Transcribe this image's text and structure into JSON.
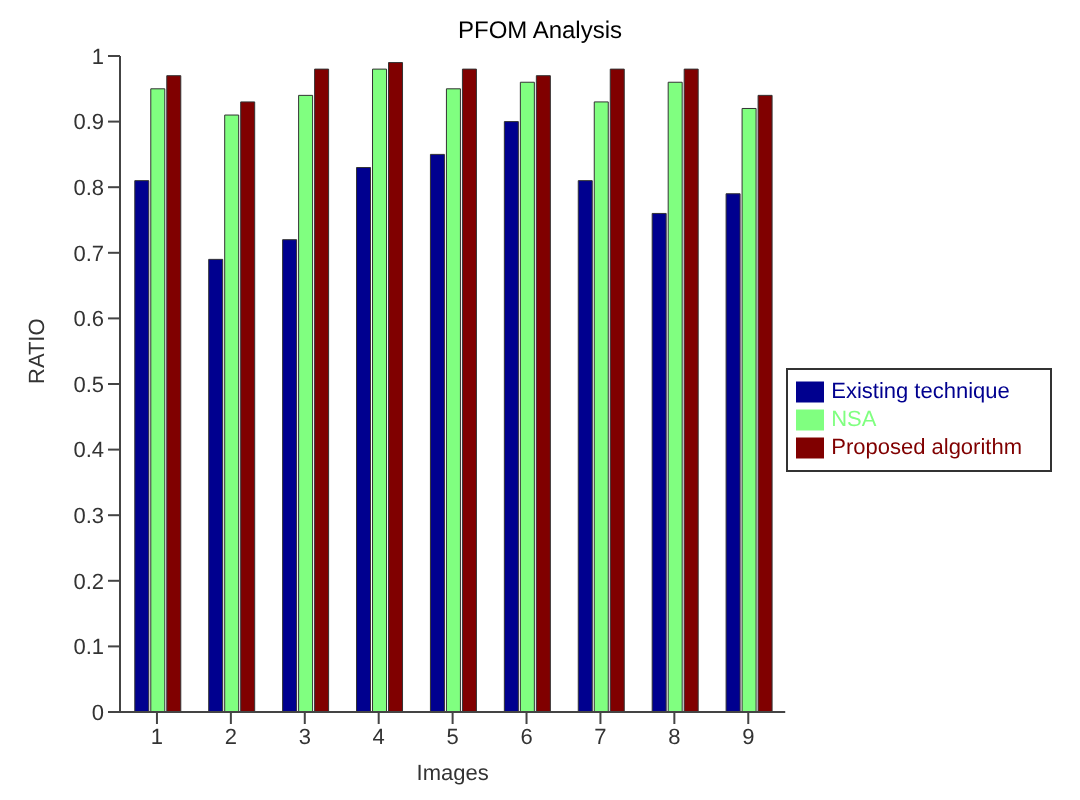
{
  "chart_data": {
    "type": "bar",
    "title": "PFOM Analysis",
    "xlabel": "Images",
    "ylabel": "RATIO",
    "categories": [
      "1",
      "2",
      "3",
      "4",
      "5",
      "6",
      "7",
      "8",
      "9"
    ],
    "series": [
      {
        "name": "Existing technique",
        "color": "#00008f",
        "values": [
          0.81,
          0.69,
          0.72,
          0.83,
          0.85,
          0.9,
          0.81,
          0.76,
          0.79
        ]
      },
      {
        "name": "NSA",
        "color": "#80ff80",
        "values": [
          0.95,
          0.91,
          0.94,
          0.98,
          0.95,
          0.96,
          0.93,
          0.96,
          0.92
        ]
      },
      {
        "name": "Proposed algorithm",
        "color": "#800000",
        "values": [
          0.97,
          0.93,
          0.98,
          0.99,
          0.98,
          0.97,
          0.98,
          0.98,
          0.94
        ]
      }
    ],
    "ylim": [
      0,
      1
    ],
    "yticks": [
      0,
      0.1,
      0.2,
      0.3,
      0.4,
      0.5,
      0.6,
      0.7,
      0.8,
      0.9,
      1
    ],
    "grid": false,
    "legend": "right"
  }
}
